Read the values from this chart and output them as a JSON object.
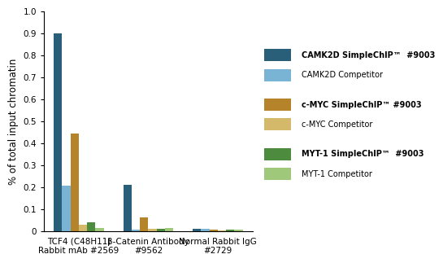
{
  "title": "",
  "ylabel": "% of total input chromatin",
  "ylim": [
    0,
    1.0
  ],
  "yticks": [
    0,
    0.1,
    0.2,
    0.3,
    0.4,
    0.5,
    0.6,
    0.7,
    0.8,
    0.9,
    1.0
  ],
  "groups": [
    "TCF4 (C48H11)\nRabbit mAb #2569",
    "β-Catenin Antibody\n#9562",
    "Normal Rabbit IgG\n#2729"
  ],
  "series": [
    {
      "label": "CAMK2D SimpleChIP™  #9003",
      "color": "#2a5f7a",
      "values": [
        0.9,
        0.21,
        0.012
      ]
    },
    {
      "label": "CAMK2D Competitor",
      "color": "#7ab4d4",
      "values": [
        0.205,
        0.008,
        0.011
      ]
    },
    {
      "label": "c-MYC SimpleChIP™ #9003",
      "color": "#b5832a",
      "values": [
        0.445,
        0.063,
        0.005
      ]
    },
    {
      "label": "c-MYC Competitor",
      "color": "#d4b96a",
      "values": [
        0.03,
        0.012,
        0.004
      ]
    },
    {
      "label": "MYT-1 SimpleChIP™  #9003",
      "color": "#4d8b3e",
      "values": [
        0.04,
        0.01,
        0.008
      ]
    },
    {
      "label": "MYT-1 Competitor",
      "color": "#a0c87a",
      "values": [
        0.015,
        0.013,
        0.007
      ]
    }
  ],
  "bar_width": 0.12,
  "background_color": "#ffffff",
  "legend_fontsize": 7.0,
  "axis_fontsize": 8.5,
  "tick_fontsize": 7.5
}
